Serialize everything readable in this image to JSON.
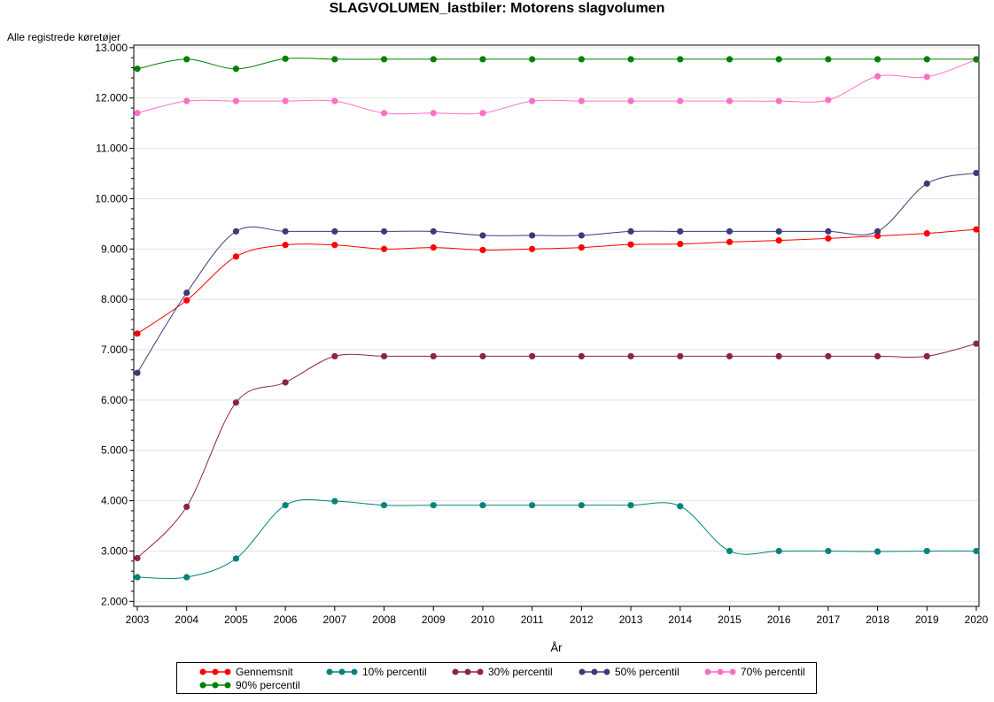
{
  "chart_data": {
    "type": "line",
    "title": "SLAGVOLUMEN_lastbiler: Motorens slagvolumen",
    "ylabel": "Alle registrede køretøjer",
    "xlabel": "År",
    "x": [
      2003,
      2004,
      2005,
      2006,
      2007,
      2008,
      2009,
      2010,
      2011,
      2012,
      2013,
      2014,
      2015,
      2016,
      2017,
      2018,
      2019,
      2020
    ],
    "xticks": [
      "2003",
      "2004",
      "2005",
      "2006",
      "2007",
      "2008",
      "2009",
      "2010",
      "2011",
      "2012",
      "2013",
      "2014",
      "2015",
      "2016",
      "2017",
      "2018",
      "2019",
      "2020"
    ],
    "ylim": [
      1900,
      13050
    ],
    "yticks": [
      {
        "value": 2000,
        "label": "2.000"
      },
      {
        "value": 3000,
        "label": "3.000"
      },
      {
        "value": 4000,
        "label": "4.000"
      },
      {
        "value": 5000,
        "label": "5.000"
      },
      {
        "value": 6000,
        "label": "6.000"
      },
      {
        "value": 7000,
        "label": "7.000"
      },
      {
        "value": 8000,
        "label": "8.000"
      },
      {
        "value": 9000,
        "label": "9.000"
      },
      {
        "value": 10000,
        "label": "10.000"
      },
      {
        "value": 11000,
        "label": "11.000"
      },
      {
        "value": 12000,
        "label": "12.000"
      },
      {
        "value": 13000,
        "label": "13.000"
      }
    ],
    "grid": "horizontal",
    "legend_position": "bottom",
    "series": [
      {
        "name": "Gennemsnit",
        "color": "#ff0000",
        "values": [
          7320,
          7980,
          8850,
          9080,
          9080,
          9000,
          9030,
          8980,
          9000,
          9030,
          9090,
          9100,
          9140,
          9170,
          9210,
          9260,
          9310,
          9390
        ]
      },
      {
        "name": "10% percentil",
        "color": "#00837b",
        "values": [
          2480,
          2480,
          2850,
          3910,
          3990,
          3910,
          3910,
          3910,
          3910,
          3910,
          3910,
          3890,
          3000,
          3000,
          3000,
          2990,
          3000,
          3000
        ]
      },
      {
        "name": "30% percentil",
        "color": "#8c2640",
        "values": [
          2860,
          3880,
          5950,
          6350,
          6870,
          6870,
          6870,
          6870,
          6870,
          6870,
          6870,
          6870,
          6870,
          6870,
          6870,
          6870,
          6870,
          7120
        ]
      },
      {
        "name": "50% percentil",
        "color": "#3b3b7a",
        "values": [
          6540,
          8130,
          9350,
          9350,
          9350,
          9350,
          9350,
          9270,
          9270,
          9270,
          9350,
          9350,
          9350,
          9350,
          9350,
          9350,
          10300,
          10510
        ]
      },
      {
        "name": "70% percentil",
        "color": "#ff6ec7",
        "values": [
          11700,
          11940,
          11940,
          11940,
          11940,
          11700,
          11700,
          11700,
          11940,
          11940,
          11940,
          11940,
          11940,
          11940,
          11960,
          12430,
          12420,
          12760
        ]
      },
      {
        "name": "90% percentil",
        "color": "#008000",
        "values": [
          12580,
          12770,
          12580,
          12780,
          12770,
          12770,
          12770,
          12770,
          12770,
          12770,
          12770,
          12770,
          12770,
          12770,
          12770,
          12770,
          12770,
          12770
        ]
      }
    ]
  }
}
